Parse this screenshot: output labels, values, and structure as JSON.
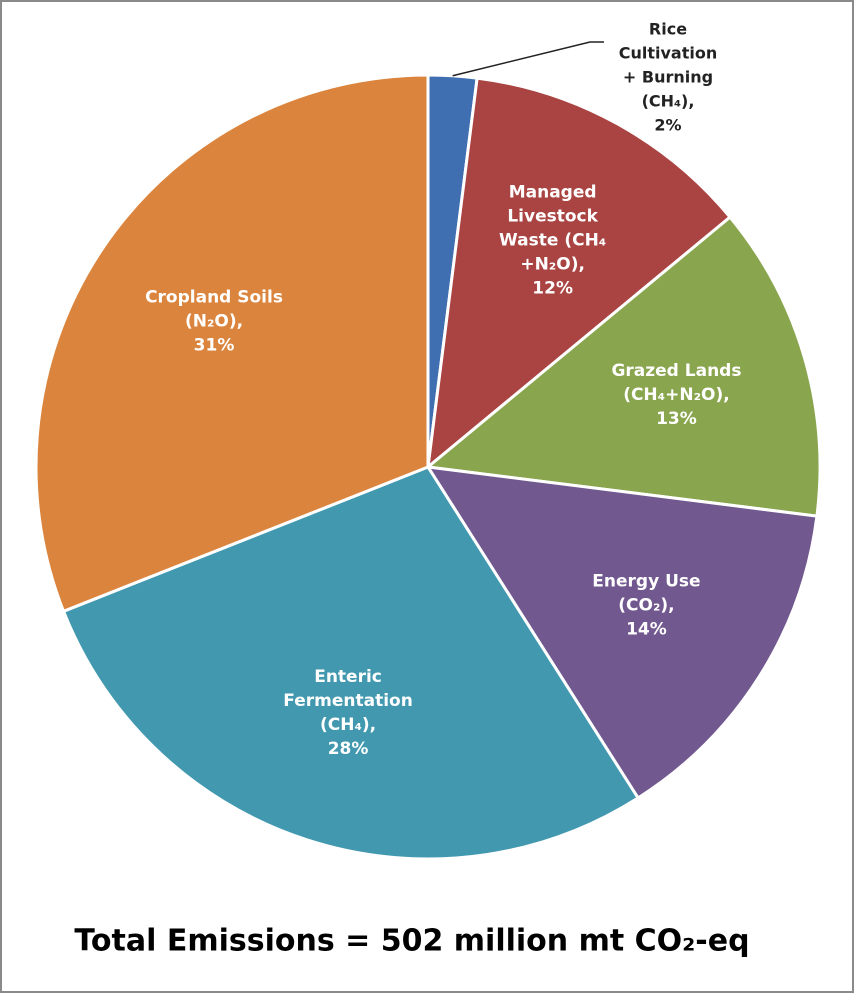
{
  "chart_data": {
    "type": "pie",
    "categories": [
      [
        "Rice",
        "Cultivation",
        "+ Burning",
        "(CH₄),"
      ],
      [
        "Managed",
        "Livestock",
        "Waste (CH₄",
        "+N₂O),"
      ],
      [
        "Grazed Lands",
        "(CH₄+N₂O),"
      ],
      [
        "Energy Use",
        "(CO₂),"
      ],
      [
        "Enteric",
        "Fermentation",
        "(CH₄),"
      ],
      [
        "Cropland Soils",
        "(N₂O),"
      ]
    ],
    "values": [
      2,
      12,
      13,
      14,
      28,
      31
    ],
    "value_labels": [
      "2%",
      "12%",
      "13%",
      "14%",
      "28%",
      "31%"
    ],
    "colors": [
      "#3f6fb0",
      "#a94442",
      "#89a54e",
      "#71588f",
      "#4198af",
      "#db843d"
    ],
    "footer": "Total Emissions = 502 million mt CO₂-eq"
  }
}
